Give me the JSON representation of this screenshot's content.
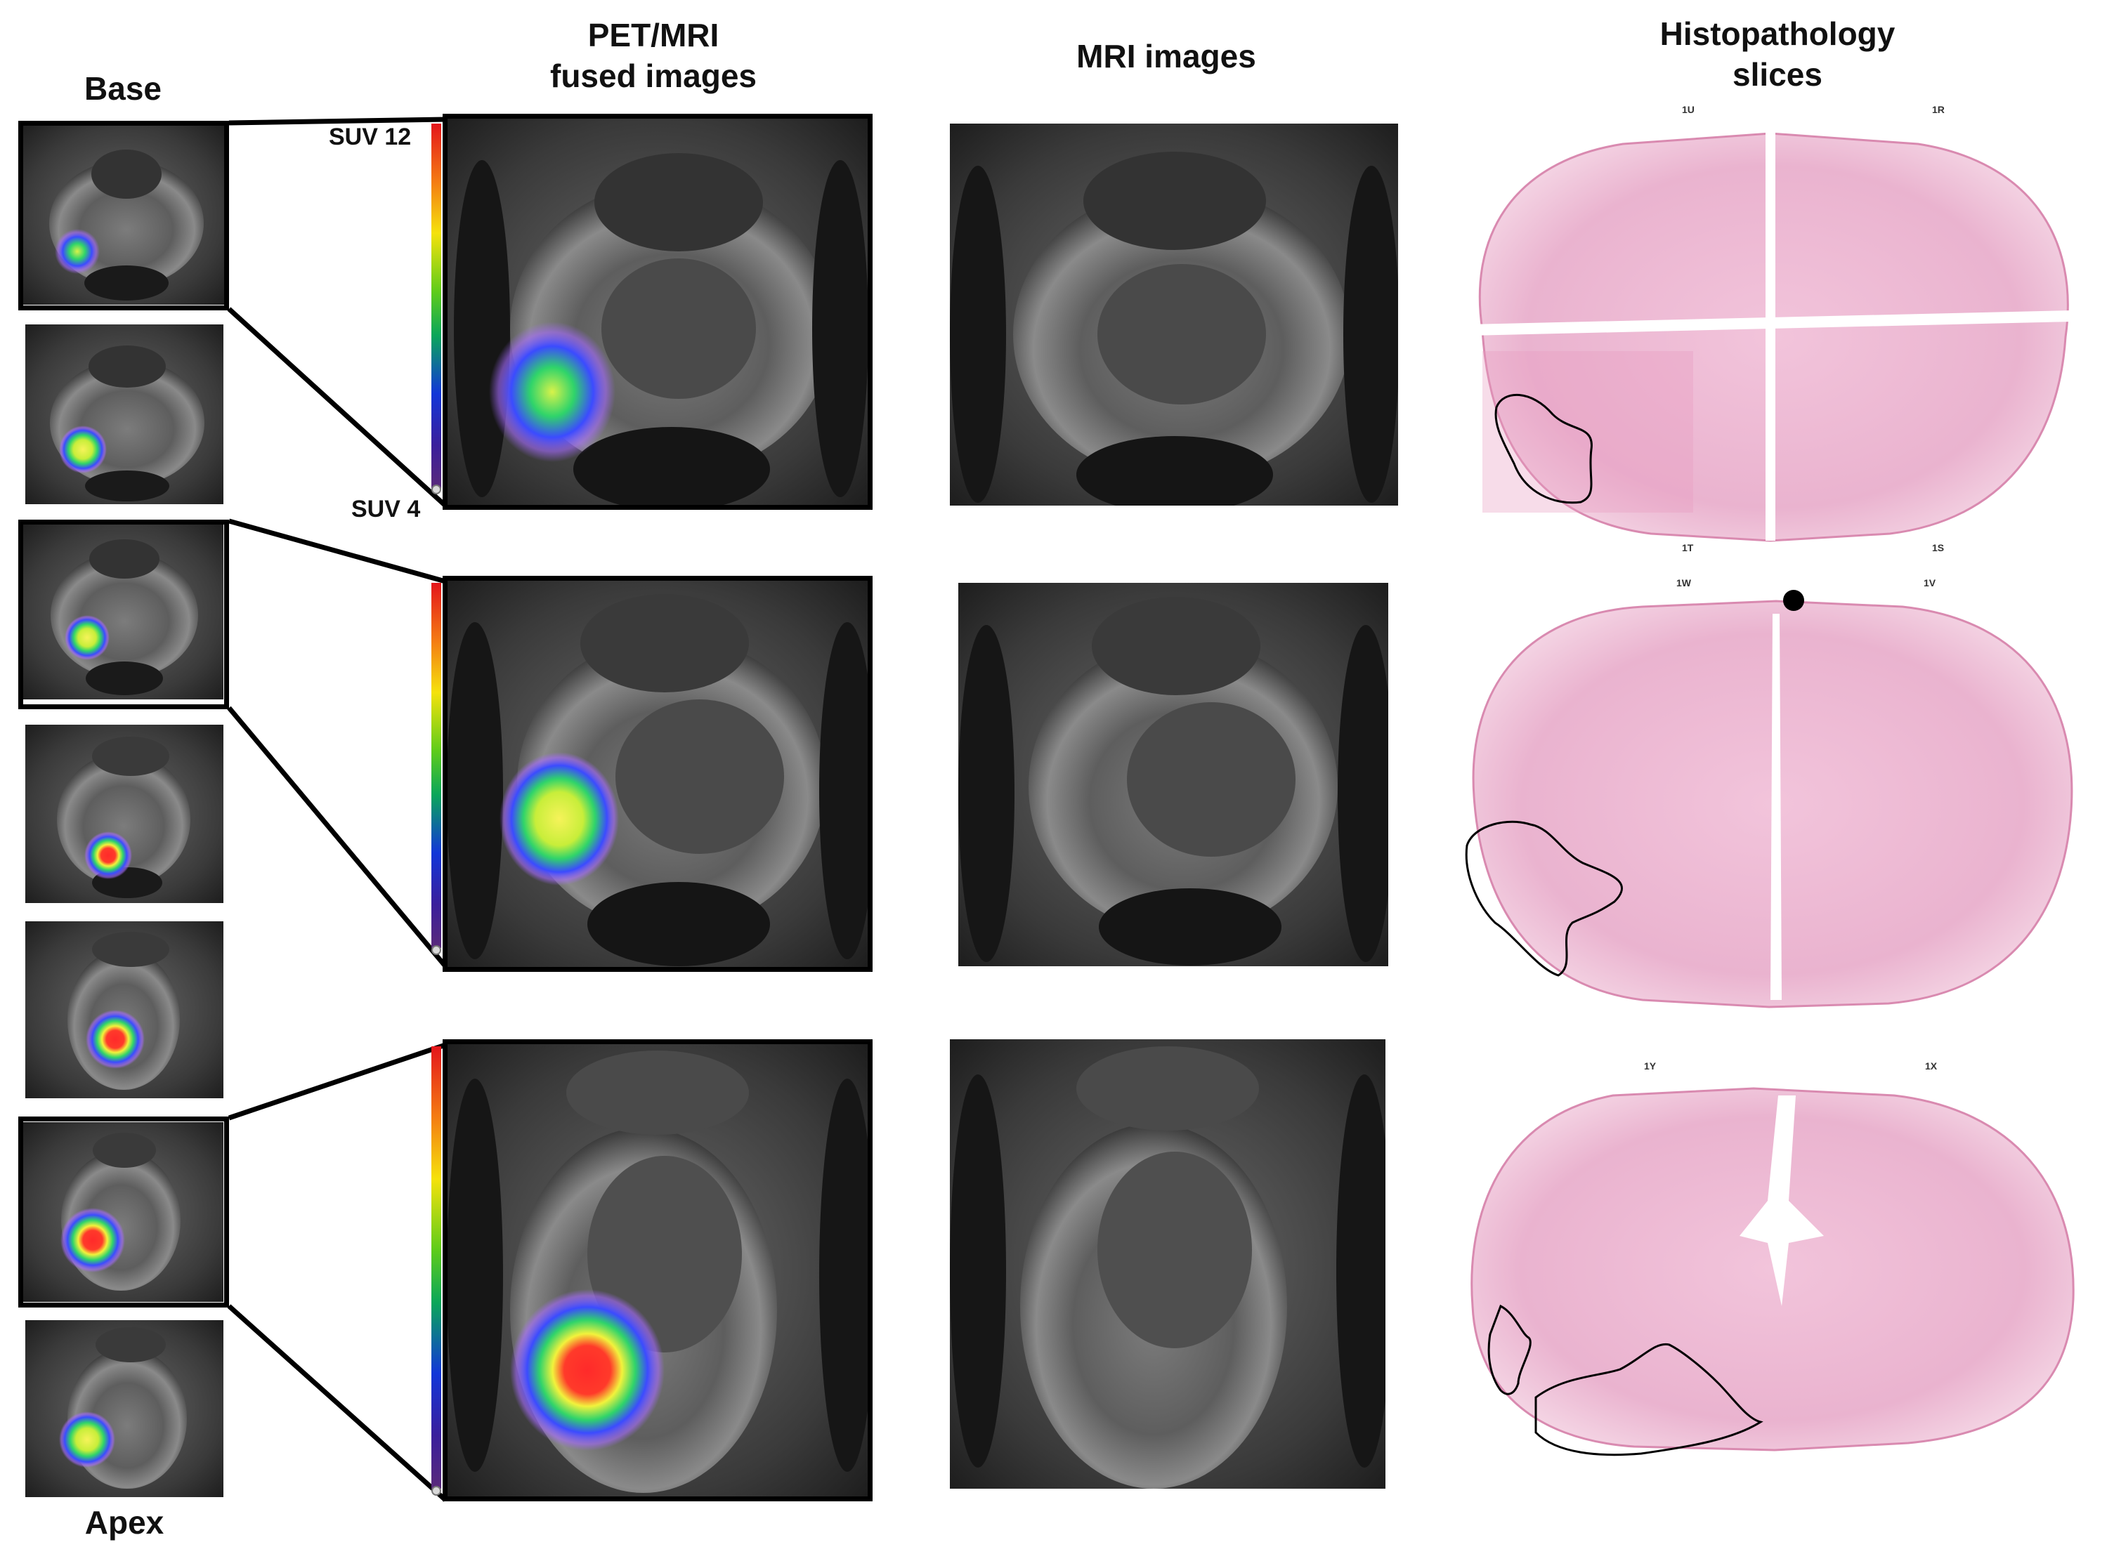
{
  "headers": {
    "base": "Base",
    "apex": "Apex",
    "petmri_line1": "PET/MRI",
    "petmri_line2": "fused images",
    "mri": "MRI images",
    "histo_line1": "Histopathology",
    "histo_line2": "slices"
  },
  "colorbar": {
    "top_label": "SUV 12",
    "bottom_label": "SUV 4",
    "colors": [
      "#e4151b",
      "#f47c13",
      "#f5e20c",
      "#5fcc1a",
      "#0aa65a",
      "#1236d8",
      "#3a1f9c"
    ]
  },
  "slice_codes": {
    "row1": [
      "1U",
      "1R",
      "1T",
      "1S"
    ],
    "row2": [
      "1W",
      "1V"
    ],
    "row3": [
      "1Y",
      "1X"
    ]
  },
  "colors": {
    "outline": "#000000",
    "tissue_pink": "#eab3cf",
    "tissue_light": "#f6dbe8",
    "hotspot_red": "#ff2a2a",
    "hotspot_yellow": "#f2f23c",
    "hotspot_green": "#2fd46a",
    "hotspot_blue": "#3b4bff",
    "hotspot_purple": "#a56bff"
  },
  "icons": [
    "pet-hotspot-icon",
    "tumor-outline-icon",
    "fiducial-dot-icon"
  ]
}
